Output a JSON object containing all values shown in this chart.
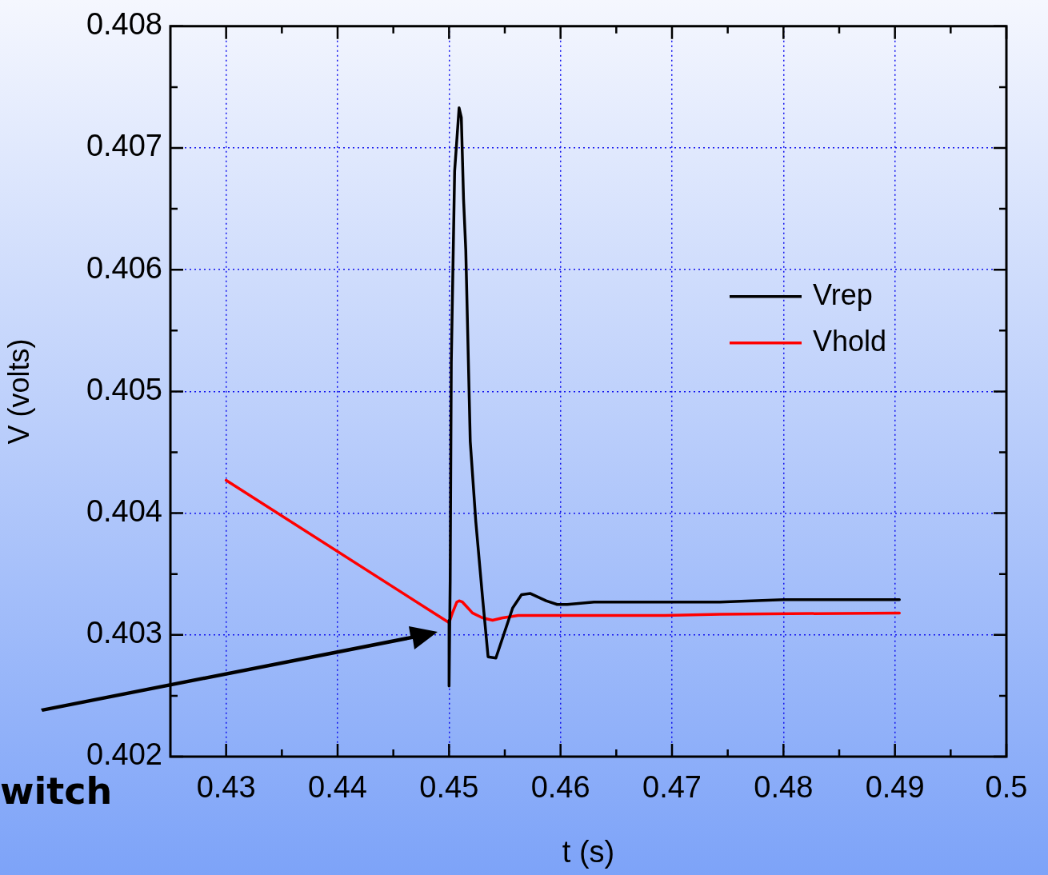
{
  "chart_data": {
    "type": "line",
    "xlabel": "t (s)",
    "ylabel": "V (volts)",
    "xlim": [
      0.425,
      0.5
    ],
    "xticks": [
      0.43,
      0.44,
      0.45,
      0.46,
      0.47,
      0.48,
      0.49,
      0.5
    ],
    "ylim": [
      0.402,
      0.408
    ],
    "yticks": [
      0.402,
      0.403,
      0.404,
      0.405,
      0.406,
      0.407,
      0.408
    ],
    "grid": true,
    "legend": "center right",
    "marker": "none",
    "line_style": "solid",
    "annotations": [
      "witch"
    ],
    "series": [
      {
        "name": "Vrep",
        "color": "#000000",
        "x": [
          0.45,
          0.45,
          0.4501,
          0.4502,
          0.4505,
          0.4509,
          0.4511,
          0.4513,
          0.4515,
          0.4519,
          0.4524,
          0.453,
          0.4535,
          0.4542,
          0.4557,
          0.4565,
          0.4573,
          0.4587,
          0.4597,
          0.4606,
          0.463,
          0.4743,
          0.48,
          0.4904
        ],
        "values": [
          0.40312,
          0.40258,
          0.40344,
          0.40524,
          0.40681,
          0.40733,
          0.40725,
          0.40658,
          0.40616,
          0.40459,
          0.40393,
          0.40331,
          0.40282,
          0.40281,
          0.40322,
          0.40333,
          0.40334,
          0.40328,
          0.40325,
          0.40325,
          0.40327,
          0.40327,
          0.40329,
          0.40329
        ]
      },
      {
        "name": "Vhold",
        "color": "#ff0000",
        "x": [
          0.43,
          0.45,
          0.4503,
          0.4507,
          0.4509,
          0.4512,
          0.4515,
          0.4521,
          0.453,
          0.4539,
          0.4548,
          0.4562,
          0.4694,
          0.4743,
          0.4904
        ],
        "values": [
          0.40427,
          0.4031,
          0.40318,
          0.40327,
          0.40328,
          0.40327,
          0.40324,
          0.40318,
          0.40314,
          0.40312,
          0.40314,
          0.40316,
          0.40316,
          0.40317,
          0.40318
        ]
      }
    ]
  }
}
